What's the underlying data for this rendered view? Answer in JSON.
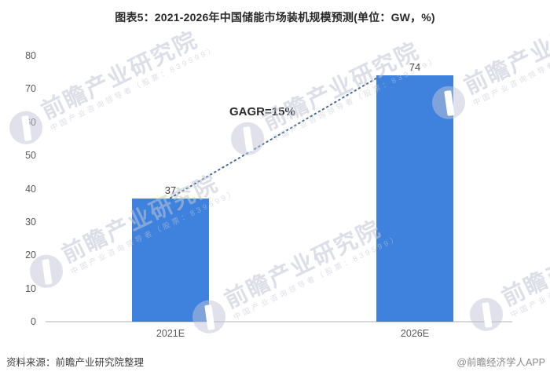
{
  "title": "图表5：2021-2026年中国储能市场装机规模预测(单位：GW，%)",
  "chart_data": {
    "type": "bar",
    "categories": [
      "2021E",
      "2026E"
    ],
    "values": [
      37,
      74
    ],
    "annotation": "GAGR=15%",
    "xlabel": "",
    "ylabel": "",
    "ylim": [
      0,
      80
    ],
    "yticks": [
      0,
      10,
      20,
      30,
      40,
      50,
      60,
      70,
      80
    ],
    "grid": false,
    "legend": false,
    "bar_color": "#3e82de",
    "trend_dot_color": "#4a6a95",
    "trend_style": "dotted"
  },
  "footer": {
    "source": "资料来源：前瞻产业研究院整理",
    "credit": "@前瞻经济学人APP"
  },
  "watermark": {
    "logo": "qianzhan-circle-logo-icon",
    "text": "前瞻产业研究院",
    "subtext": "中国产业咨询领导者（股票：839599）"
  }
}
